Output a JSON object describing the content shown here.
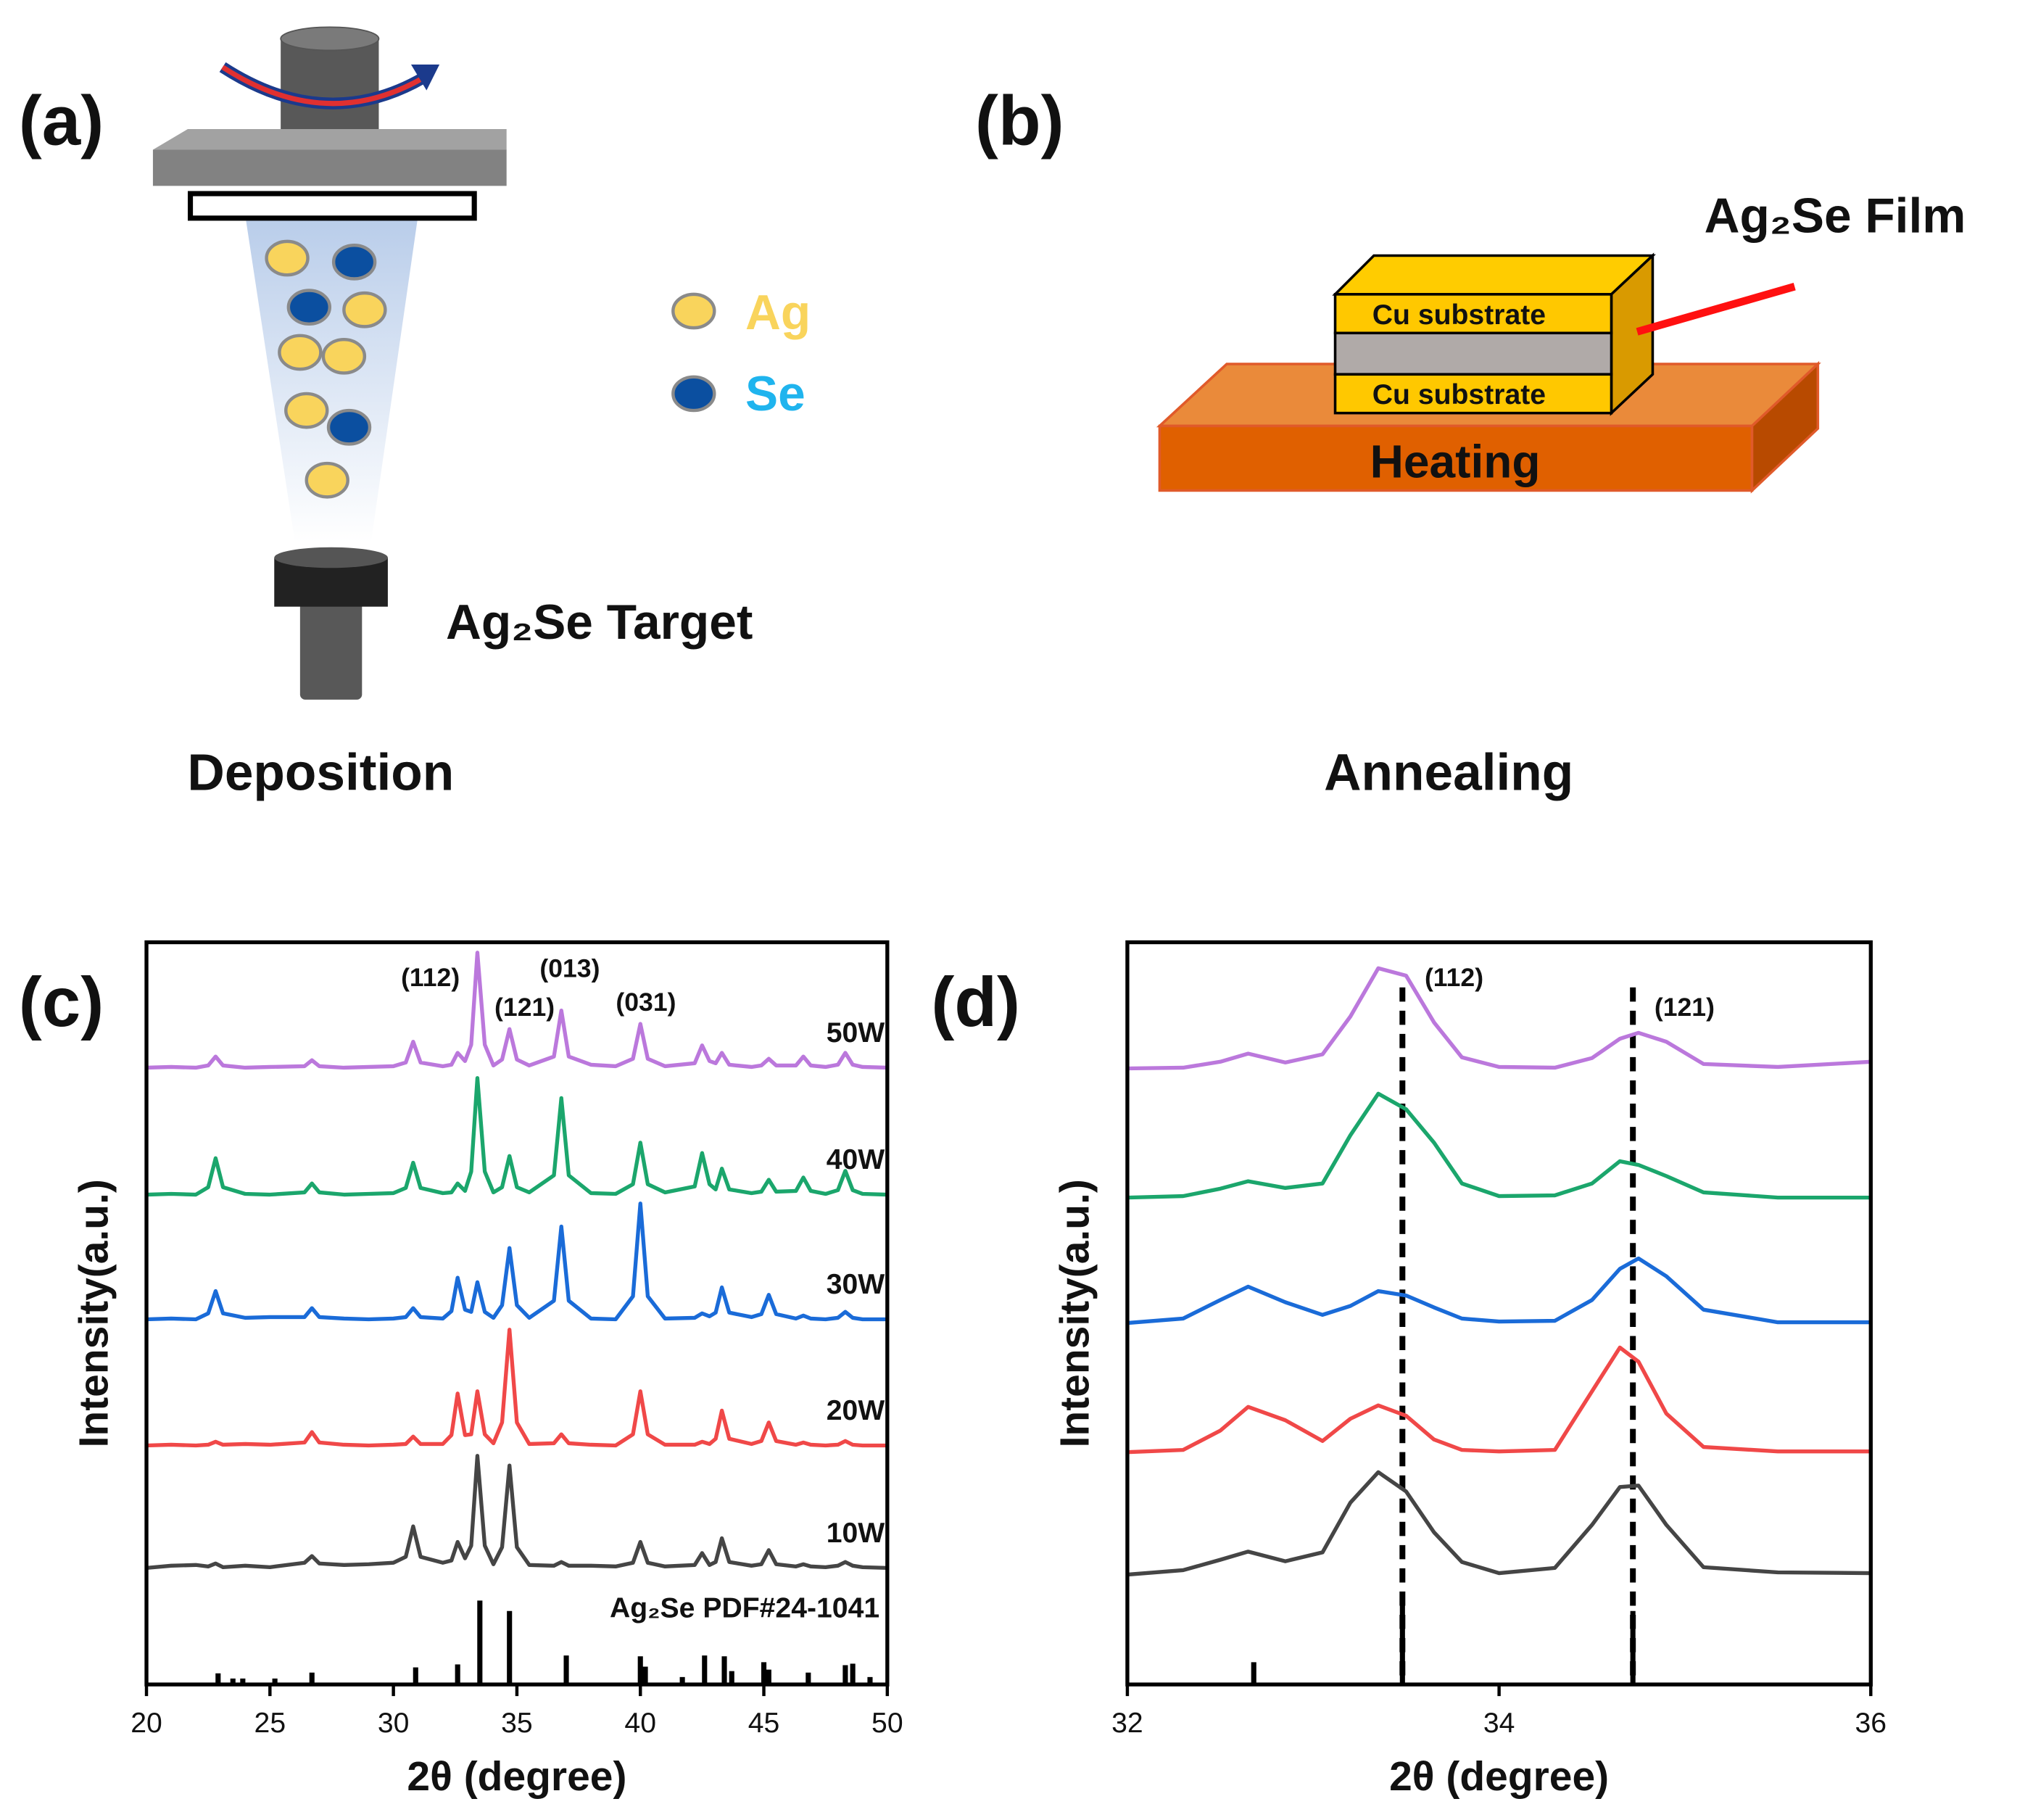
{
  "panels": {
    "a": {
      "label": "(a)",
      "legend": [
        "Ag",
        "Se"
      ],
      "target": "Ag₂Se Target",
      "caption": "Deposition"
    },
    "b": {
      "label": "(b)",
      "substrate_top": "Cu substrate",
      "substrate_bottom": "Cu substrate",
      "heater": "Heating",
      "film": "Ag₂Se Film",
      "caption": "Annealing"
    }
  },
  "chart_data": [
    {
      "type": "line",
      "panel_label": "(c)",
      "xlabel": "2θ (degree)",
      "ylabel": "Intensity(a.u.)",
      "xlim": [
        20,
        50
      ],
      "xticks": [
        20,
        25,
        30,
        35,
        40,
        45,
        50
      ],
      "ylim": [
        0,
        100
      ],
      "annotations": [
        "(112)",
        "(121)",
        "(013)",
        "(031)"
      ],
      "x": [
        20,
        21,
        22,
        22.5,
        22.8,
        23.1,
        24,
        25,
        26.4,
        26.7,
        27,
        28,
        29,
        30,
        30.5,
        30.8,
        31.1,
        32,
        32.35,
        32.6,
        32.9,
        33.15,
        33.4,
        33.7,
        34.05,
        34.4,
        34.7,
        35.0,
        35.5,
        36.5,
        36.8,
        37.1,
        38,
        39,
        39.7,
        40.0,
        40.3,
        41,
        42.2,
        42.5,
        42.8,
        43.05,
        43.3,
        43.6,
        44.5,
        44.9,
        45.2,
        45.5,
        46.3,
        46.6,
        46.9,
        47.5,
        48.0,
        48.3,
        48.6,
        49,
        50
      ],
      "series": [
        {
          "name": "50W",
          "color": "#bb78dc",
          "values": [
            83.1,
            83.2,
            83.1,
            83.4,
            84.6,
            83.4,
            83.1,
            83.2,
            83.3,
            84.1,
            83.3,
            83.1,
            83.2,
            83.3,
            83.8,
            86.6,
            83.8,
            83.3,
            83.5,
            85.1,
            84.0,
            86.2,
            98.6,
            86.2,
            83.4,
            84.2,
            88.3,
            84.2,
            83.4,
            84.6,
            90.8,
            84.6,
            83.5,
            83.3,
            84.3,
            89.0,
            84.3,
            83.3,
            83.7,
            86.1,
            84.0,
            83.7,
            85.1,
            83.5,
            83.2,
            83.4,
            84.3,
            83.4,
            83.4,
            84.6,
            83.4,
            83.2,
            83.5,
            85.1,
            83.5,
            83.2,
            83.1
          ]
        },
        {
          "name": "40W",
          "color": "#1ba66c",
          "values": [
            66.0,
            66.1,
            66.0,
            67.0,
            70.9,
            67.0,
            66.1,
            66.0,
            66.3,
            67.5,
            66.3,
            66.0,
            66.1,
            66.2,
            66.9,
            70.3,
            66.9,
            66.2,
            66.3,
            67.5,
            66.5,
            69.1,
            81.7,
            69.1,
            66.3,
            67.0,
            71.2,
            67.0,
            66.3,
            68.6,
            79.0,
            68.6,
            66.2,
            66.1,
            67.4,
            73.0,
            67.4,
            66.3,
            67.1,
            71.6,
            67.4,
            66.7,
            69.5,
            66.7,
            66.2,
            66.4,
            68.0,
            66.4,
            66.5,
            68.3,
            66.5,
            66.1,
            66.6,
            69.2,
            66.6,
            66.1,
            66.0
          ]
        },
        {
          "name": "30W",
          "color": "#1a6bd8",
          "values": [
            49.2,
            49.3,
            49.2,
            50.0,
            53.0,
            50.0,
            49.4,
            49.5,
            49.5,
            50.7,
            49.5,
            49.3,
            49.2,
            49.3,
            49.5,
            50.7,
            49.5,
            49.3,
            50.3,
            54.8,
            50.5,
            50.2,
            54.2,
            50.2,
            49.4,
            51.1,
            58.8,
            51.1,
            49.4,
            51.7,
            61.7,
            51.7,
            49.3,
            49.2,
            52.3,
            64.8,
            52.3,
            49.3,
            49.4,
            50.0,
            49.6,
            50.1,
            53.5,
            50.1,
            49.5,
            49.9,
            52.5,
            49.9,
            49.3,
            49.7,
            49.3,
            49.2,
            49.4,
            50.2,
            49.4,
            49.2,
            49.2
          ]
        },
        {
          "name": "20W",
          "color": "#f04848",
          "values": [
            32.2,
            32.3,
            32.2,
            32.3,
            32.7,
            32.3,
            32.4,
            32.3,
            32.6,
            34.0,
            32.6,
            32.3,
            32.2,
            32.3,
            32.4,
            33.4,
            32.4,
            32.4,
            33.6,
            39.2,
            33.6,
            33.7,
            39.5,
            33.7,
            32.5,
            35.3,
            47.8,
            35.3,
            32.4,
            32.5,
            33.7,
            32.5,
            32.3,
            32.2,
            33.7,
            39.5,
            33.7,
            32.3,
            32.3,
            32.7,
            32.4,
            33.1,
            36.9,
            33.1,
            32.4,
            32.8,
            35.3,
            32.8,
            32.3,
            32.6,
            32.3,
            32.2,
            32.3,
            32.8,
            32.3,
            32.2,
            32.2
          ]
        },
        {
          "name": "10W",
          "color": "#454545",
          "values": [
            15.7,
            16.0,
            16.1,
            15.9,
            16.3,
            15.8,
            16.0,
            15.8,
            16.4,
            17.3,
            16.3,
            16.1,
            16.2,
            16.4,
            17.2,
            21.3,
            17.2,
            16.4,
            16.7,
            19.2,
            17.0,
            18.7,
            30.8,
            18.7,
            16.2,
            18.5,
            29.5,
            18.5,
            16.1,
            16.0,
            16.5,
            16.0,
            16.0,
            15.9,
            16.4,
            19.2,
            16.4,
            15.9,
            16.1,
            17.7,
            16.1,
            16.5,
            19.7,
            16.5,
            16.0,
            16.2,
            18.1,
            16.2,
            15.9,
            16.2,
            15.9,
            15.8,
            16.0,
            16.5,
            16.0,
            15.8,
            15.7
          ]
        }
      ],
      "reference": {
        "name": "Ag₂Se PDF#24-1041",
        "color": "#000000",
        "x": [
          22.9,
          23.5,
          23.9,
          25.2,
          26.7,
          30.9,
          32.6,
          33.5,
          34.7,
          37.0,
          40.0,
          40.2,
          41.7,
          42.6,
          43.4,
          43.7,
          45.0,
          45.2,
          46.8,
          48.3,
          48.6,
          49.3
        ],
        "values": [
          1.5,
          0.8,
          0.8,
          0.8,
          1.6,
          2.3,
          2.7,
          11.3,
          9.9,
          3.9,
          3.8,
          2.4,
          1.0,
          3.9,
          3.8,
          1.8,
          3.0,
          2.0,
          1.6,
          2.6,
          2.8,
          1.0
        ]
      }
    },
    {
      "type": "line",
      "panel_label": "(d)",
      "xlabel": "2θ (degree)",
      "ylabel": "Intensity(a.u.)",
      "xlim": [
        32,
        36
      ],
      "xticks": [
        32,
        34,
        36
      ],
      "ylim": [
        0,
        100
      ],
      "markers": [
        {
          "x": 33.48,
          "label": "(112)"
        },
        {
          "x": 34.72,
          "label": "(121)"
        }
      ],
      "x": [
        32,
        32.3,
        32.5,
        32.65,
        32.85,
        33.05,
        33.2,
        33.35,
        33.5,
        33.65,
        33.8,
        34.0,
        34.3,
        34.5,
        34.65,
        34.75,
        34.9,
        35.1,
        35.5,
        36
      ],
      "series": [
        {
          "color": "#bb78dc",
          "values": [
            83.0,
            83.1,
            83.9,
            85.0,
            83.8,
            84.9,
            90.0,
            96.5,
            95.5,
            89.2,
            84.5,
            83.2,
            83.1,
            84.4,
            87.0,
            87.8,
            86.6,
            83.6,
            83.2,
            83.9
          ]
        },
        {
          "color": "#1ba66c",
          "values": [
            65.6,
            65.8,
            66.8,
            67.8,
            66.9,
            67.5,
            74.0,
            79.6,
            77.5,
            73.0,
            67.5,
            65.8,
            65.9,
            67.5,
            70.5,
            70.0,
            68.5,
            66.3,
            65.6,
            65.6
          ]
        },
        {
          "color": "#1a6bd8",
          "values": [
            48.7,
            49.3,
            51.8,
            53.6,
            51.5,
            49.8,
            51.0,
            53.0,
            52.4,
            50.8,
            49.3,
            48.9,
            49.0,
            51.8,
            56.0,
            57.4,
            55.0,
            50.5,
            48.8,
            48.8
          ]
        },
        {
          "color": "#f04848",
          "values": [
            31.3,
            31.6,
            34.2,
            37.4,
            35.6,
            32.8,
            35.8,
            37.6,
            36.2,
            33.0,
            31.6,
            31.4,
            31.6,
            39.5,
            45.4,
            43.5,
            36.5,
            32.0,
            31.4,
            31.4
          ]
        },
        {
          "color": "#454545",
          "values": [
            14.8,
            15.4,
            16.8,
            17.9,
            16.6,
            17.8,
            24.5,
            28.6,
            26.0,
            20.5,
            16.5,
            15.0,
            15.7,
            21.5,
            26.6,
            26.8,
            21.5,
            15.8,
            15.1,
            15.0
          ]
        }
      ],
      "reference": {
        "color": "#000000",
        "x": [
          32.68,
          33.48,
          34.72
        ],
        "values": [
          3.0,
          11.3,
          9.9
        ]
      }
    }
  ]
}
